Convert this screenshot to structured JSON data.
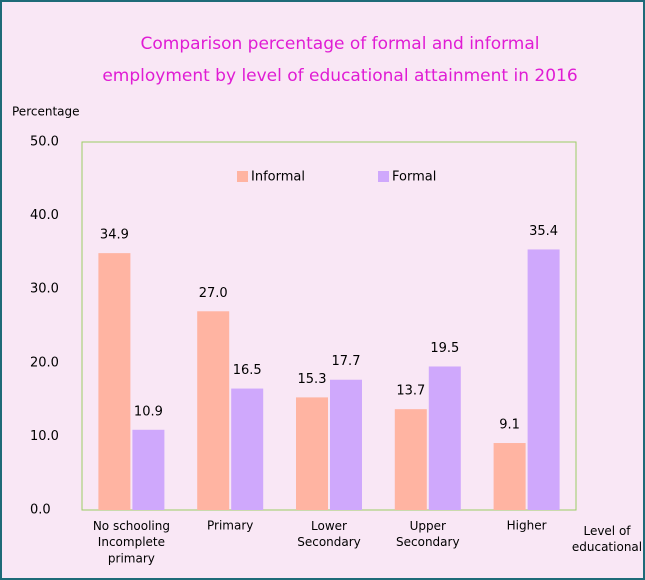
{
  "chart_data": {
    "type": "bar",
    "title": [
      "Comparison percentage of formal and informal",
      "employment by level of educational attainment in 2016"
    ],
    "y_label": "Percentage",
    "x_label": "Level of\neducational",
    "categories": [
      "No schooling\nIncomplete\nprimary",
      "Primary",
      "Lower\nSecondary",
      "Upper\nSecondary",
      "Higher"
    ],
    "series": [
      {
        "name": "Informal",
        "color": "#ffb4a2",
        "label_color": "#e8181c",
        "values": [
          34.9,
          27,
          15.3,
          13.7,
          9.1
        ],
        "value_labels": [
          "34.9",
          "27.0",
          "15.3",
          "13.7",
          "9.1"
        ]
      },
      {
        "name": "Formal",
        "color": "#cfa8fc",
        "label_color": "#7a3aa8",
        "values": [
          10.9,
          16.5,
          17.7,
          19.5,
          35.4
        ],
        "value_labels": [
          "10.9",
          "16.5",
          "17.7",
          "19.5",
          "35.4"
        ]
      }
    ],
    "ylim": [
      0,
      50
    ],
    "yticks": [
      {
        "value": 0,
        "label": "0.0"
      },
      {
        "value": 10,
        "label": "10.0"
      },
      {
        "value": 20,
        "label": "20.0"
      },
      {
        "value": 30,
        "label": "30.0"
      },
      {
        "value": 40,
        "label": "40.0"
      },
      {
        "value": 50,
        "label": "50.0"
      }
    ],
    "grid": false
  }
}
